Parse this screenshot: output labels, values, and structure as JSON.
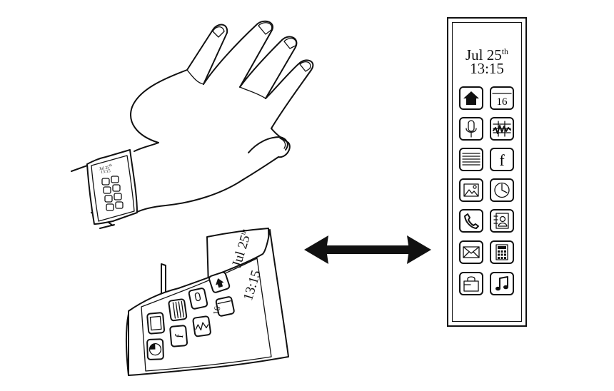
{
  "device": {
    "date_main": "Jul 25",
    "date_suffix": "th",
    "time": "13:15",
    "calendar_day": "16",
    "facebook_letter": "f"
  },
  "band": {
    "date_main": "Jul 25",
    "date_suffix": "th",
    "time": "13:15",
    "calendar_day": "16"
  },
  "icons": [
    "home-icon",
    "calendar-icon",
    "microphone-icon",
    "stocks-chart-icon",
    "notes-icon",
    "facebook-icon",
    "photos-icon",
    "clock-icon",
    "phone-icon",
    "contacts-icon",
    "mail-icon",
    "calculator-icon",
    "shopping-bag-icon",
    "music-note-icon"
  ],
  "colors": {
    "ink": "#111111",
    "paper": "#ffffff"
  }
}
